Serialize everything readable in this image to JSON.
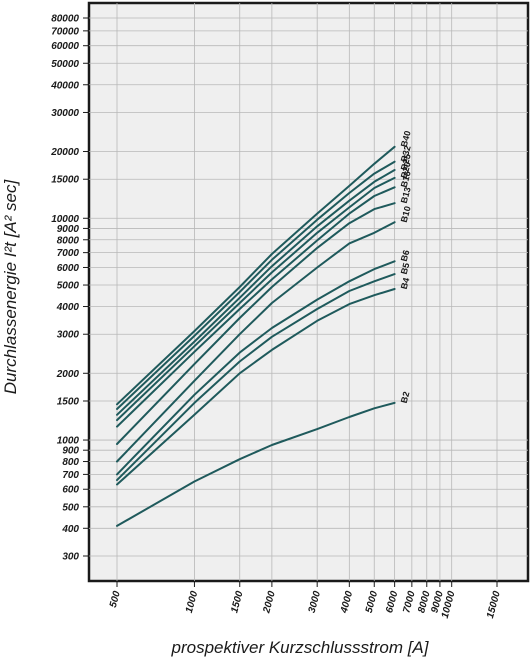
{
  "chart_data": {
    "type": "line",
    "xscale": "log",
    "yscale": "log",
    "xlabel": "prospektiver Kurzschlussstrom [A]",
    "ylabel": "Durchlassenergie I²t [A² sec]",
    "xlim": [
      500,
      15000
    ],
    "ylim": [
      300,
      80000
    ],
    "grid": true,
    "line_color": "#1f5a5c",
    "x_ticks": [
      500,
      1000,
      1500,
      2000,
      3000,
      4000,
      5000,
      6000,
      7000,
      8000,
      9000,
      10000,
      15000
    ],
    "x_tick_labels": [
      "500",
      "1000",
      "1500",
      "2000",
      "3000",
      "4000",
      "5000",
      "6000",
      "7000",
      "8000",
      "9000",
      "10000",
      "15000"
    ],
    "y_ticks": [
      300,
      400,
      500,
      600,
      700,
      800,
      900,
      1000,
      1500,
      2000,
      3000,
      4000,
      5000,
      6000,
      7000,
      8000,
      9000,
      10000,
      15000,
      20000,
      30000,
      40000,
      50000,
      60000,
      70000,
      80000
    ],
    "y_tick_labels": [
      "300",
      "400",
      "500",
      "600",
      "700",
      "800",
      "900",
      "1000",
      "1500",
      "2000",
      "3000",
      "4000",
      "5000",
      "6000",
      "7000",
      "8000",
      "9000",
      "10000",
      "15000",
      "20000",
      "30000",
      "40000",
      "50000",
      "60000",
      "70000",
      "80000"
    ],
    "x": [
      500,
      1000,
      1500,
      2000,
      3000,
      4000,
      5000,
      6000
    ],
    "series": [
      {
        "name": "B40",
        "values": [
          1450,
          3100,
          4900,
          6900,
          10500,
          14000,
          17600,
          21000
        ]
      },
      {
        "name": "B32",
        "values": [
          1380,
          2950,
          4650,
          6500,
          9850,
          13000,
          15900,
          18000
        ]
      },
      {
        "name": "B25",
        "values": [
          1300,
          2780,
          4380,
          6080,
          9200,
          12000,
          14600,
          16500
        ]
      },
      {
        "name": "B20",
        "values": [
          1230,
          2650,
          4150,
          5700,
          8600,
          11200,
          13700,
          15200
        ]
      },
      {
        "name": "B16",
        "values": [
          1150,
          2500,
          3900,
          5300,
          7950,
          10500,
          12600,
          13800
        ]
      },
      {
        "name": "B13",
        "values": [
          960,
          2200,
          3550,
          4900,
          7350,
          9500,
          11000,
          11700
        ]
      },
      {
        "name": "B10",
        "values": [
          800,
          1850,
          3000,
          4150,
          6000,
          7700,
          8600,
          9600
        ]
      },
      {
        "name": "B6",
        "values": [
          700,
          1600,
          2480,
          3200,
          4300,
          5200,
          5900,
          6400
        ]
      },
      {
        "name": "B5",
        "values": [
          660,
          1470,
          2260,
          2920,
          3900,
          4700,
          5200,
          5600
        ]
      },
      {
        "name": "B4",
        "values": [
          630,
          1300,
          2000,
          2550,
          3450,
          4100,
          4500,
          4800
        ]
      },
      {
        "name": "B2",
        "values": [
          410,
          650,
          820,
          950,
          1120,
          1270,
          1390,
          1470
        ]
      }
    ]
  }
}
